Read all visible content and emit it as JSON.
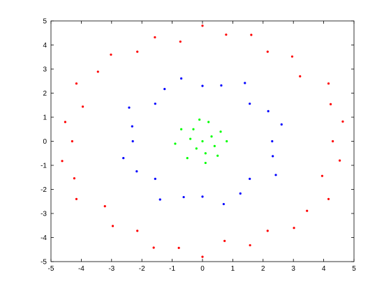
{
  "chart_data": {
    "type": "scatter",
    "xlim": [
      -5,
      5
    ],
    "ylim": [
      -5,
      5
    ],
    "xticks": [
      -5,
      -4,
      -3,
      -2,
      -1,
      0,
      1,
      2,
      3,
      4,
      5
    ],
    "yticks": [
      -5,
      -4,
      -3,
      -2,
      -1,
      0,
      1,
      2,
      3,
      4,
      5
    ],
    "grid": false,
    "series": [
      {
        "color": "#ff0000",
        "x": [
          4.3,
          4.63,
          4.23,
          4.16,
          3.22,
          2.96,
          2.15,
          1.61,
          0.78,
          0.0,
          -0.73,
          -1.57,
          -2.15,
          -3.02,
          -3.45,
          -4.16,
          -3.95,
          -4.53,
          -4.3,
          -4.63,
          -4.23,
          -4.16,
          -3.22,
          -2.96,
          -2.15,
          -1.61,
          -0.78,
          0.0,
          0.73,
          1.57,
          2.15,
          3.02,
          3.45,
          4.16,
          3.95,
          4.53
        ],
        "y": [
          0.0,
          0.82,
          1.54,
          2.4,
          2.7,
          3.52,
          3.72,
          4.42,
          4.43,
          4.8,
          4.14,
          4.32,
          3.72,
          3.6,
          2.89,
          2.4,
          1.44,
          0.8,
          0.0,
          -0.82,
          -1.54,
          -2.4,
          -2.7,
          -3.52,
          -3.72,
          -4.42,
          -4.43,
          -4.8,
          -4.14,
          -4.32,
          -3.72,
          -3.6,
          -2.89,
          -2.4,
          -1.44,
          -0.8
        ]
      },
      {
        "color": "#0000ff",
        "x": [
          2.3,
          2.61,
          2.17,
          1.56,
          1.4,
          0.62,
          0.0,
          -0.7,
          -1.25,
          -1.56,
          -2.42,
          -2.32,
          -2.3,
          -2.61,
          -2.17,
          -1.56,
          -1.4,
          -0.62,
          0.0,
          0.7,
          1.25,
          1.56,
          2.42,
          2.32
        ],
        "y": [
          0.0,
          0.7,
          1.25,
          1.56,
          2.42,
          2.32,
          2.3,
          2.61,
          2.17,
          1.56,
          1.4,
          0.62,
          0.0,
          -0.7,
          -1.25,
          -1.56,
          -2.42,
          -2.32,
          -2.3,
          -2.61,
          -2.17,
          -1.56,
          -1.4,
          -0.62
        ]
      },
      {
        "color": "#00ff00",
        "x": [
          0.0,
          0.3,
          -0.4,
          0.1,
          -0.2,
          0.6,
          -0.7,
          0.5,
          -0.5,
          0.8,
          -0.9,
          0.2,
          -0.1,
          0.1,
          0.4,
          -0.3
        ],
        "y": [
          0.0,
          0.2,
          0.1,
          -0.5,
          -0.3,
          0.4,
          0.5,
          -0.6,
          -0.7,
          0.0,
          -0.1,
          0.8,
          0.9,
          -0.9,
          -0.2,
          0.5
        ]
      }
    ]
  }
}
